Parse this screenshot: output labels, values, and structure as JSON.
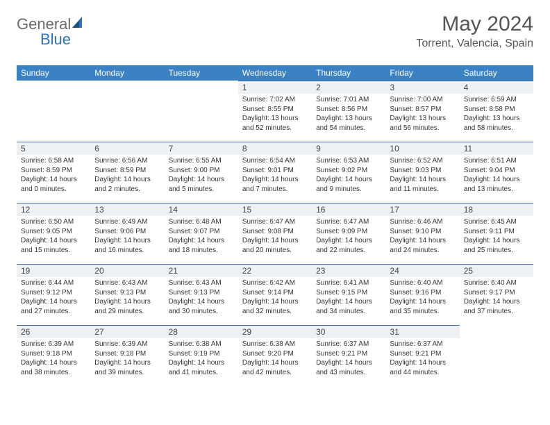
{
  "logo": {
    "text1": "General",
    "text2": "Blue"
  },
  "title": "May 2024",
  "location": "Torrent, Valencia, Spain",
  "daynames": [
    "Sunday",
    "Monday",
    "Tuesday",
    "Wednesday",
    "Thursday",
    "Friday",
    "Saturday"
  ],
  "colors": {
    "header_bg": "#3b82c4",
    "header_text": "#ffffff",
    "dayrow_bg": "#eef1f4",
    "dayrow_border": "#3b6fa0",
    "title_color": "#555555",
    "logo_gray": "#6a6a6a",
    "logo_blue": "#2e72b8"
  },
  "weeks": [
    [
      {
        "n": "",
        "sunrise": "",
        "sunset": "",
        "daylight": ""
      },
      {
        "n": "",
        "sunrise": "",
        "sunset": "",
        "daylight": ""
      },
      {
        "n": "",
        "sunrise": "",
        "sunset": "",
        "daylight": ""
      },
      {
        "n": "1",
        "sunrise": "Sunrise: 7:02 AM",
        "sunset": "Sunset: 8:55 PM",
        "daylight": "Daylight: 13 hours and 52 minutes."
      },
      {
        "n": "2",
        "sunrise": "Sunrise: 7:01 AM",
        "sunset": "Sunset: 8:56 PM",
        "daylight": "Daylight: 13 hours and 54 minutes."
      },
      {
        "n": "3",
        "sunrise": "Sunrise: 7:00 AM",
        "sunset": "Sunset: 8:57 PM",
        "daylight": "Daylight: 13 hours and 56 minutes."
      },
      {
        "n": "4",
        "sunrise": "Sunrise: 6:59 AM",
        "sunset": "Sunset: 8:58 PM",
        "daylight": "Daylight: 13 hours and 58 minutes."
      }
    ],
    [
      {
        "n": "5",
        "sunrise": "Sunrise: 6:58 AM",
        "sunset": "Sunset: 8:59 PM",
        "daylight": "Daylight: 14 hours and 0 minutes."
      },
      {
        "n": "6",
        "sunrise": "Sunrise: 6:56 AM",
        "sunset": "Sunset: 8:59 PM",
        "daylight": "Daylight: 14 hours and 2 minutes."
      },
      {
        "n": "7",
        "sunrise": "Sunrise: 6:55 AM",
        "sunset": "Sunset: 9:00 PM",
        "daylight": "Daylight: 14 hours and 5 minutes."
      },
      {
        "n": "8",
        "sunrise": "Sunrise: 6:54 AM",
        "sunset": "Sunset: 9:01 PM",
        "daylight": "Daylight: 14 hours and 7 minutes."
      },
      {
        "n": "9",
        "sunrise": "Sunrise: 6:53 AM",
        "sunset": "Sunset: 9:02 PM",
        "daylight": "Daylight: 14 hours and 9 minutes."
      },
      {
        "n": "10",
        "sunrise": "Sunrise: 6:52 AM",
        "sunset": "Sunset: 9:03 PM",
        "daylight": "Daylight: 14 hours and 11 minutes."
      },
      {
        "n": "11",
        "sunrise": "Sunrise: 6:51 AM",
        "sunset": "Sunset: 9:04 PM",
        "daylight": "Daylight: 14 hours and 13 minutes."
      }
    ],
    [
      {
        "n": "12",
        "sunrise": "Sunrise: 6:50 AM",
        "sunset": "Sunset: 9:05 PM",
        "daylight": "Daylight: 14 hours and 15 minutes."
      },
      {
        "n": "13",
        "sunrise": "Sunrise: 6:49 AM",
        "sunset": "Sunset: 9:06 PM",
        "daylight": "Daylight: 14 hours and 16 minutes."
      },
      {
        "n": "14",
        "sunrise": "Sunrise: 6:48 AM",
        "sunset": "Sunset: 9:07 PM",
        "daylight": "Daylight: 14 hours and 18 minutes."
      },
      {
        "n": "15",
        "sunrise": "Sunrise: 6:47 AM",
        "sunset": "Sunset: 9:08 PM",
        "daylight": "Daylight: 14 hours and 20 minutes."
      },
      {
        "n": "16",
        "sunrise": "Sunrise: 6:47 AM",
        "sunset": "Sunset: 9:09 PM",
        "daylight": "Daylight: 14 hours and 22 minutes."
      },
      {
        "n": "17",
        "sunrise": "Sunrise: 6:46 AM",
        "sunset": "Sunset: 9:10 PM",
        "daylight": "Daylight: 14 hours and 24 minutes."
      },
      {
        "n": "18",
        "sunrise": "Sunrise: 6:45 AM",
        "sunset": "Sunset: 9:11 PM",
        "daylight": "Daylight: 14 hours and 25 minutes."
      }
    ],
    [
      {
        "n": "19",
        "sunrise": "Sunrise: 6:44 AM",
        "sunset": "Sunset: 9:12 PM",
        "daylight": "Daylight: 14 hours and 27 minutes."
      },
      {
        "n": "20",
        "sunrise": "Sunrise: 6:43 AM",
        "sunset": "Sunset: 9:13 PM",
        "daylight": "Daylight: 14 hours and 29 minutes."
      },
      {
        "n": "21",
        "sunrise": "Sunrise: 6:43 AM",
        "sunset": "Sunset: 9:13 PM",
        "daylight": "Daylight: 14 hours and 30 minutes."
      },
      {
        "n": "22",
        "sunrise": "Sunrise: 6:42 AM",
        "sunset": "Sunset: 9:14 PM",
        "daylight": "Daylight: 14 hours and 32 minutes."
      },
      {
        "n": "23",
        "sunrise": "Sunrise: 6:41 AM",
        "sunset": "Sunset: 9:15 PM",
        "daylight": "Daylight: 14 hours and 34 minutes."
      },
      {
        "n": "24",
        "sunrise": "Sunrise: 6:40 AM",
        "sunset": "Sunset: 9:16 PM",
        "daylight": "Daylight: 14 hours and 35 minutes."
      },
      {
        "n": "25",
        "sunrise": "Sunrise: 6:40 AM",
        "sunset": "Sunset: 9:17 PM",
        "daylight": "Daylight: 14 hours and 37 minutes."
      }
    ],
    [
      {
        "n": "26",
        "sunrise": "Sunrise: 6:39 AM",
        "sunset": "Sunset: 9:18 PM",
        "daylight": "Daylight: 14 hours and 38 minutes."
      },
      {
        "n": "27",
        "sunrise": "Sunrise: 6:39 AM",
        "sunset": "Sunset: 9:18 PM",
        "daylight": "Daylight: 14 hours and 39 minutes."
      },
      {
        "n": "28",
        "sunrise": "Sunrise: 6:38 AM",
        "sunset": "Sunset: 9:19 PM",
        "daylight": "Daylight: 14 hours and 41 minutes."
      },
      {
        "n": "29",
        "sunrise": "Sunrise: 6:38 AM",
        "sunset": "Sunset: 9:20 PM",
        "daylight": "Daylight: 14 hours and 42 minutes."
      },
      {
        "n": "30",
        "sunrise": "Sunrise: 6:37 AM",
        "sunset": "Sunset: 9:21 PM",
        "daylight": "Daylight: 14 hours and 43 minutes."
      },
      {
        "n": "31",
        "sunrise": "Sunrise: 6:37 AM",
        "sunset": "Sunset: 9:21 PM",
        "daylight": "Daylight: 14 hours and 44 minutes."
      },
      {
        "n": "",
        "sunrise": "",
        "sunset": "",
        "daylight": ""
      }
    ]
  ]
}
